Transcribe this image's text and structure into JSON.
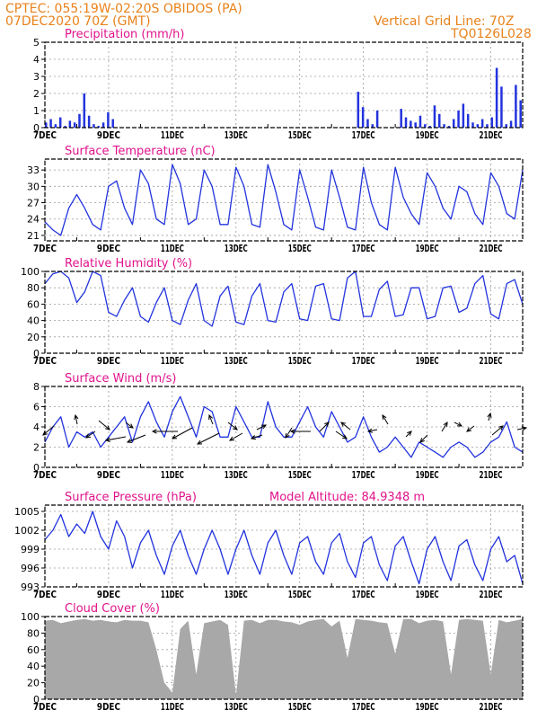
{
  "header": {
    "line1_left": "CPTEC:   055:19W-02:20S   OBIDOS (PA)",
    "line2_left": "07DEC2020 70Z (GMT)",
    "line1_right": "Vertical Grid Line: 70Z",
    "line2_right": "TQ0126L028"
  },
  "colors": {
    "header": "#e8821c",
    "title": "#e0138c",
    "line": "#2233dd",
    "cloud": "#a8a8a8",
    "grid": "#9a9a9a",
    "axis": "#000000"
  },
  "x_axis": {
    "ticks": [
      "7DEC",
      "9DEC",
      "11DEC",
      "13DEC",
      "15DEC",
      "17DEC",
      "19DEC",
      "21DEC"
    ],
    "tick_days": [
      0,
      2,
      4,
      6,
      8,
      10,
      12,
      14
    ],
    "range_days": [
      0,
      15
    ]
  },
  "chart_data": [
    {
      "id": "precip",
      "type": "bar",
      "title": "Precipitation (mm/h)",
      "ylim": [
        0,
        5
      ],
      "yticks": [
        0,
        1,
        2,
        3,
        4,
        5
      ],
      "grid": true,
      "x_days": [
        0.0,
        0.15,
        0.3,
        0.45,
        0.6,
        0.75,
        0.9,
        1.05,
        1.2,
        1.35,
        1.5,
        1.65,
        1.8,
        1.95,
        2.1,
        9.8,
        9.95,
        10.1,
        10.25,
        10.4,
        11.15,
        11.3,
        11.45,
        11.6,
        11.75,
        11.9,
        12.05,
        12.2,
        12.35,
        12.5,
        12.65,
        12.8,
        12.95,
        13.1,
        13.25,
        13.4,
        13.55,
        13.7,
        13.85,
        14.0,
        14.15,
        14.3,
        14.45,
        14.6,
        14.75,
        14.9
      ],
      "values": [
        0.3,
        0.5,
        0.2,
        0.6,
        0.1,
        0.4,
        0.3,
        0.8,
        2.0,
        0.7,
        0.2,
        0.1,
        0.3,
        0.9,
        0.5,
        2.1,
        1.2,
        0.5,
        0.2,
        1.0,
        1.1,
        0.6,
        0.4,
        0.3,
        0.7,
        0.2,
        0.1,
        1.3,
        0.8,
        0.2,
        0.1,
        0.5,
        1.0,
        1.4,
        0.8,
        0.3,
        0.2,
        0.5,
        0.2,
        0.6,
        3.5,
        2.4,
        0.2,
        0.4,
        2.5,
        1.6
      ]
    },
    {
      "id": "temp",
      "type": "line",
      "title": "Surface Temperature (nC)",
      "ylim": [
        20,
        35
      ],
      "yticks": [
        21,
        24,
        27,
        30,
        33
      ],
      "grid": true,
      "x_days": [
        0,
        0.25,
        0.5,
        0.75,
        1,
        1.25,
        1.5,
        1.75,
        2,
        2.25,
        2.5,
        2.75,
        3,
        3.25,
        3.5,
        3.75,
        4,
        4.25,
        4.5,
        4.75,
        5,
        5.25,
        5.5,
        5.75,
        6,
        6.25,
        6.5,
        6.75,
        7,
        7.25,
        7.5,
        7.75,
        8,
        8.25,
        8.5,
        8.75,
        9,
        9.25,
        9.5,
        9.75,
        10,
        10.25,
        10.5,
        10.75,
        11,
        11.25,
        11.5,
        11.75,
        12,
        12.25,
        12.5,
        12.75,
        13,
        13.25,
        13.5,
        13.75,
        14,
        14.25,
        14.5,
        14.75,
        15
      ],
      "values": [
        23.5,
        22,
        21,
        26,
        28.5,
        26,
        23,
        22,
        30,
        31,
        26,
        23,
        33,
        30.5,
        24,
        23,
        34,
        30.5,
        23,
        24,
        33,
        30,
        23,
        23,
        33.5,
        30,
        23,
        22.5,
        34,
        29,
        23,
        22,
        33,
        28,
        22.5,
        22,
        33,
        28,
        22.5,
        22,
        33.5,
        27,
        23,
        22,
        33.5,
        28,
        25,
        23,
        32.5,
        30,
        26,
        24,
        30,
        29,
        25,
        23,
        32.5,
        30,
        25,
        24,
        33
      ]
    },
    {
      "id": "rh",
      "type": "line",
      "title": "Relative Humidity (%)",
      "ylim": [
        0,
        100
      ],
      "yticks": [
        0,
        20,
        40,
        60,
        80,
        100
      ],
      "grid": true,
      "x_days": [
        0,
        0.25,
        0.5,
        0.75,
        1,
        1.25,
        1.5,
        1.75,
        2,
        2.25,
        2.5,
        2.75,
        3,
        3.25,
        3.5,
        3.75,
        4,
        4.25,
        4.5,
        4.75,
        5,
        5.25,
        5.5,
        5.75,
        6,
        6.25,
        6.5,
        6.75,
        7,
        7.25,
        7.5,
        7.75,
        8,
        8.25,
        8.5,
        8.75,
        9,
        9.25,
        9.5,
        9.75,
        10,
        10.25,
        10.5,
        10.75,
        11,
        11.25,
        11.5,
        11.75,
        12,
        12.25,
        12.5,
        12.75,
        13,
        13.25,
        13.5,
        13.75,
        14,
        14.25,
        14.5,
        14.75,
        15
      ],
      "values": [
        85,
        97,
        100,
        92,
        62,
        75,
        100,
        95,
        50,
        45,
        65,
        80,
        45,
        38,
        62,
        80,
        40,
        35,
        65,
        85,
        40,
        33,
        70,
        82,
        38,
        35,
        70,
        85,
        40,
        38,
        75,
        85,
        42,
        40,
        82,
        85,
        42,
        40,
        92,
        100,
        45,
        45,
        78,
        88,
        45,
        47,
        80,
        80,
        42,
        45,
        80,
        82,
        50,
        55,
        85,
        95,
        48,
        42,
        85,
        90,
        60
      ]
    },
    {
      "id": "wind",
      "type": "line",
      "title": "Surface Wind (m/s)",
      "ylim": [
        0,
        8
      ],
      "yticks": [
        0,
        2,
        4,
        6,
        8
      ],
      "grid": true,
      "x_days": [
        0,
        0.25,
        0.5,
        0.75,
        1,
        1.25,
        1.5,
        1.75,
        2,
        2.25,
        2.5,
        2.75,
        3,
        3.25,
        3.5,
        3.75,
        4,
        4.25,
        4.5,
        4.75,
        5,
        5.25,
        5.5,
        5.75,
        6,
        6.25,
        6.5,
        6.75,
        7,
        7.25,
        7.5,
        7.75,
        8,
        8.25,
        8.5,
        8.75,
        9,
        9.25,
        9.5,
        9.75,
        10,
        10.25,
        10.5,
        10.75,
        11,
        11.25,
        11.5,
        11.75,
        12,
        12.25,
        12.5,
        12.75,
        13,
        13.25,
        13.5,
        13.75,
        14,
        14.25,
        14.5,
        14.75,
        15
      ],
      "values": [
        2.5,
        4,
        5,
        2,
        3.5,
        3,
        3.5,
        2,
        3,
        4,
        5,
        2.5,
        5,
        6.5,
        4.5,
        3,
        5.5,
        7,
        5,
        3,
        6,
        5.5,
        3,
        3,
        6,
        4.5,
        3,
        3,
        6.5,
        4,
        3,
        3,
        4.5,
        6,
        4,
        3,
        5.5,
        4,
        2.5,
        3,
        5,
        3,
        1.5,
        2,
        3,
        2,
        1,
        2.5,
        2,
        1.5,
        1,
        2,
        2.5,
        2,
        1,
        1.5,
        2.5,
        3,
        4.5,
        2,
        1.5
      ]
    },
    {
      "id": "pres",
      "type": "line",
      "title": "Surface Pressure (hPa)",
      "annotation": "Model Altitude: 84.9348 m",
      "ylim": [
        993,
        1006
      ],
      "yticks": [
        993,
        996,
        999,
        1002,
        1005
      ],
      "grid": true,
      "x_days": [
        0,
        0.25,
        0.5,
        0.75,
        1,
        1.25,
        1.5,
        1.75,
        2,
        2.25,
        2.5,
        2.75,
        3,
        3.25,
        3.5,
        3.75,
        4,
        4.25,
        4.5,
        4.75,
        5,
        5.25,
        5.5,
        5.75,
        6,
        6.25,
        6.5,
        6.75,
        7,
        7.25,
        7.5,
        7.75,
        8,
        8.25,
        8.5,
        8.75,
        9,
        9.25,
        9.5,
        9.75,
        10,
        10.25,
        10.5,
        10.75,
        11,
        11.25,
        11.5,
        11.75,
        12,
        12.25,
        12.5,
        12.75,
        13,
        13.25,
        13.5,
        13.75,
        14,
        14.25,
        14.5,
        14.75,
        15
      ],
      "values": [
        1000.5,
        1002,
        1004.5,
        1001,
        1003,
        1001.5,
        1005,
        1001,
        999,
        1003.5,
        1001,
        996,
        1000,
        1002,
        998,
        995,
        999.5,
        1002,
        998,
        995,
        999,
        1002,
        999,
        995,
        999,
        1002,
        998,
        995,
        1000,
        1002,
        998,
        995,
        1000,
        1001,
        997,
        995,
        1000,
        1001.5,
        997,
        994.5,
        1000,
        1001,
        996.5,
        994,
        999.5,
        1001,
        997,
        993.5,
        999,
        1001,
        997,
        994,
        999.5,
        1000.5,
        996.5,
        994,
        999,
        1001,
        997,
        998,
        993.5
      ]
    },
    {
      "id": "cloud",
      "type": "area",
      "title": "Cloud Cover (%)",
      "ylim": [
        0,
        100
      ],
      "yticks": [
        0,
        20,
        40,
        60,
        80,
        100
      ],
      "grid": true,
      "x_days": [
        0,
        0.25,
        0.5,
        0.75,
        1,
        1.25,
        1.5,
        1.75,
        2,
        2.25,
        2.5,
        2.75,
        3,
        3.25,
        3.5,
        3.75,
        4,
        4.25,
        4.5,
        4.75,
        5,
        5.25,
        5.5,
        5.75,
        6,
        6.25,
        6.5,
        6.75,
        7,
        7.25,
        7.5,
        7.75,
        8,
        8.25,
        8.5,
        8.75,
        9,
        9.25,
        9.5,
        9.75,
        10,
        10.25,
        10.5,
        10.75,
        11,
        11.25,
        11.5,
        11.75,
        12,
        12.25,
        12.5,
        12.75,
        13,
        13.25,
        13.5,
        13.75,
        14,
        14.25,
        14.5,
        14.75,
        15
      ],
      "values": [
        95,
        96,
        92,
        94,
        96,
        97,
        95,
        96,
        94,
        93,
        96,
        95,
        95,
        93,
        60,
        20,
        8,
        85,
        95,
        30,
        92,
        94,
        96,
        90,
        5,
        95,
        96,
        92,
        96,
        96,
        94,
        93,
        90,
        94,
        96,
        97,
        88,
        95,
        50,
        97,
        96,
        95,
        93,
        92,
        55,
        97,
        97,
        92,
        95,
        96,
        94,
        30,
        96,
        97,
        96,
        95,
        30,
        96,
        93,
        95,
        97
      ]
    }
  ]
}
